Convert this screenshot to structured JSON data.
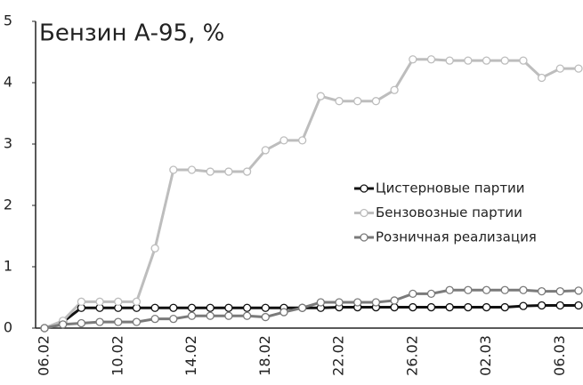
{
  "chart_data": {
    "type": "line",
    "title": "Бензин А-95, %",
    "categories": [
      "06.02",
      null,
      null,
      null,
      "10.02",
      null,
      null,
      null,
      "14.02",
      null,
      null,
      null,
      "18.02",
      null,
      null,
      null,
      "22.02",
      null,
      null,
      null,
      "26.02",
      null,
      null,
      null,
      "02.03",
      null,
      null,
      null,
      "06.03",
      null
    ],
    "series": [
      {
        "name": "Цистерновые партии",
        "color": "#111111",
        "values": [
          0,
          0.1,
          0.33,
          0.33,
          0.33,
          0.33,
          0.33,
          0.33,
          0.33,
          0.33,
          0.33,
          0.33,
          0.33,
          0.33,
          0.33,
          0.33,
          0.34,
          0.34,
          0.34,
          0.34,
          0.34,
          0.34,
          0.34,
          0.34,
          0.34,
          0.34,
          0.36,
          0.37,
          0.37,
          0.37
        ]
      },
      {
        "name": "Бензовозные партии",
        "color": "#bdbdbd",
        "values": [
          0,
          0.12,
          0.43,
          0.43,
          0.43,
          0.43,
          1.3,
          2.58,
          2.58,
          2.55,
          2.55,
          2.55,
          2.9,
          3.06,
          3.06,
          3.78,
          3.7,
          3.7,
          3.7,
          3.88,
          4.38,
          4.38,
          4.36,
          4.36,
          4.36,
          4.36,
          4.36,
          4.08,
          4.23,
          4.23
        ]
      },
      {
        "name": "Розничная реализация",
        "color": "#7a7a7a",
        "values": [
          0,
          0.06,
          0.08,
          0.1,
          0.1,
          0.1,
          0.15,
          0.15,
          0.2,
          0.2,
          0.2,
          0.2,
          0.18,
          0.26,
          0.33,
          0.42,
          0.42,
          0.42,
          0.42,
          0.45,
          0.56,
          0.56,
          0.62,
          0.62,
          0.62,
          0.62,
          0.62,
          0.6,
          0.6,
          0.61
        ]
      }
    ],
    "ylim": [
      0,
      5
    ],
    "yticks": [
      0,
      1,
      2,
      3,
      4,
      5
    ],
    "grid": false,
    "legend": "right"
  }
}
